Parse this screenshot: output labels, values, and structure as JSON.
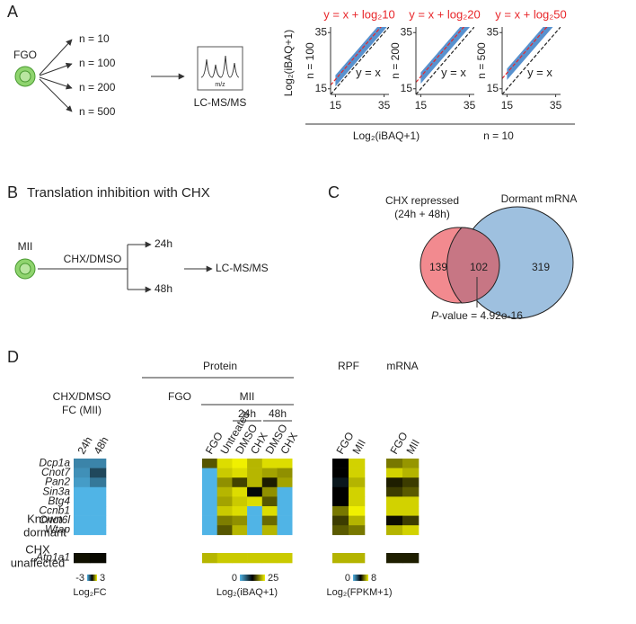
{
  "panels": {
    "A": {
      "label": "A",
      "source": "FGO",
      "groups": [
        "n = 10",
        "n = 100",
        "n = 200",
        "n = 500"
      ],
      "spectrum_axis": "m/z",
      "method": "LC-MS/MS",
      "scatter": {
        "y_title": "Log₂(iBAQ+1)",
        "x_title": "Log₂(iBAQ+1)",
        "x_group": "n = 10",
        "lim": [
          13,
          37
        ],
        "ticks": [
          15,
          35
        ],
        "identity": "y = x",
        "fit_color": "#e8262a",
        "point_color": "#3b7fc7",
        "plots": [
          {
            "y_group": "n = 100",
            "fit": "y = x + log₂10",
            "fold": 10
          },
          {
            "y_group": "n = 200",
            "fit": "y = x + log₂20",
            "fold": 20
          },
          {
            "y_group": "n = 500",
            "fit": "y = x + log₂50",
            "fold": 50
          }
        ]
      }
    },
    "B": {
      "label": "B",
      "title": "Translation inhibition with CHX",
      "source": "MII",
      "treatment": "CHX/DMSO",
      "times": [
        "24h",
        "48h"
      ],
      "method": "LC-MS/MS"
    },
    "C": {
      "label": "C",
      "set_a": [
        "CHX repressed",
        "(24h + 48h)"
      ],
      "set_b": "Dormant mRNA",
      "only_a": "139",
      "both": "102",
      "only_b": "319",
      "p_italic": "P",
      "p_text": "-value = 4.92e-16"
    },
    "D": {
      "label": "D",
      "header_protein": "Protein",
      "header_rpf": "RPF",
      "header_mrna": "mRNA",
      "fc_title": [
        "CHX/DMSO",
        "FC (MII)"
      ],
      "fgo_header": "FGO",
      "mii_header": "MII",
      "time_headers": [
        "24h",
        "48h"
      ],
      "rows": [
        "Dcp1a",
        "Cnot7",
        "Pan2",
        "Sin3a",
        "Btg4",
        "Ccnb1",
        "Cnot6l",
        "Wtap",
        "Atp1a1"
      ],
      "groups": [
        [
          "Known",
          "dormant"
        ],
        [
          "CHX",
          "unaffected"
        ]
      ],
      "blocks": [
        {
          "colorbar": 0,
          "columns": [
            "24h",
            "48h"
          ],
          "values": [
            [
              -2.2,
              -2.2
            ],
            [
              -2.4,
              -1.2
            ],
            [
              -2.6,
              -2.0
            ],
            [
              -3,
              -3
            ],
            [
              -3,
              -3
            ],
            [
              -3,
              -3
            ],
            [
              -3,
              -3
            ],
            [
              -3,
              -3
            ],
            [
              0.2,
              0.1
            ]
          ]
        },
        {
          "colorbar": 1,
          "columns": [
            "FGO",
            "Untreated",
            "DMSO",
            "CHX",
            "DMSO",
            "CHX"
          ],
          "values": [
            [
              17,
              24,
              25,
              22,
              24,
              24
            ],
            [
              0,
              23,
              24,
              22,
              21,
              20
            ],
            [
              0,
              20,
              16,
              22,
              14,
              21
            ],
            [
              0,
              22,
              24,
              12,
              20,
              0
            ],
            [
              0,
              21,
              23,
              24,
              17,
              0
            ],
            [
              0,
              23,
              24,
              0,
              24,
              0
            ],
            [
              0,
              19,
              20,
              0,
              18,
              0
            ],
            [
              0,
              17,
              22,
              0,
              22,
              0
            ],
            [
              22,
              23,
              23,
              23,
              23,
              23
            ]
          ]
        },
        {
          "colorbar": 2,
          "columns": [
            "FGO",
            "MII"
          ],
          "values": [
            [
              4,
              7.5
            ],
            [
              4,
              7.5
            ],
            [
              3.5,
              7
            ],
            [
              4,
              7.5
            ],
            [
              4,
              7.5
            ],
            [
              6,
              8
            ],
            [
              5,
              7
            ],
            [
              5.5,
              6
            ],
            [
              7,
              7
            ]
          ]
        },
        {
          "colorbar": 2,
          "columns": [
            "FGO",
            "MII"
          ],
          "values": [
            [
              6,
              6.5
            ],
            [
              7.5,
              7
            ],
            [
              4.5,
              5
            ],
            [
              5,
              5.5
            ],
            [
              7.5,
              7.5
            ],
            [
              7.5,
              7.5
            ],
            [
              4.2,
              5
            ],
            [
              7,
              7.5
            ],
            [
              4.5,
              4.5
            ]
          ]
        }
      ],
      "colorbars": [
        {
          "min": -3,
          "max": 3,
          "label": "Log₂FC"
        },
        {
          "min": 0,
          "max": 25,
          "label": "Log₂(iBAQ+1)"
        },
        {
          "min": 0,
          "max": 8,
          "label": "Log₂(FPKM+1)"
        }
      ]
    }
  }
}
